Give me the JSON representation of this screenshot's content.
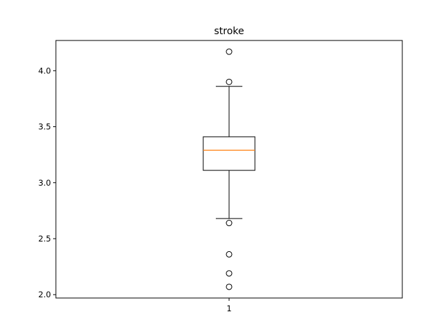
{
  "chart_data": {
    "type": "box",
    "title": "stroke",
    "xlabel": "",
    "ylabel": "",
    "ylim": [
      1.97,
      4.27
    ],
    "yticks": [
      "2.0",
      "2.5",
      "3.0",
      "3.5",
      "4.0"
    ],
    "categories": [
      "1"
    ],
    "boxes": [
      {
        "label": "1",
        "whisker_low": 2.68,
        "q1": 3.11,
        "median": 3.29,
        "q3": 3.41,
        "whisker_high": 3.86,
        "outliers": [
          4.17,
          3.9,
          2.64,
          2.36,
          2.19,
          2.07
        ]
      }
    ],
    "colors": {
      "box": "#000000",
      "median": "#ff7f0e"
    },
    "grid": false,
    "legend": "none"
  }
}
